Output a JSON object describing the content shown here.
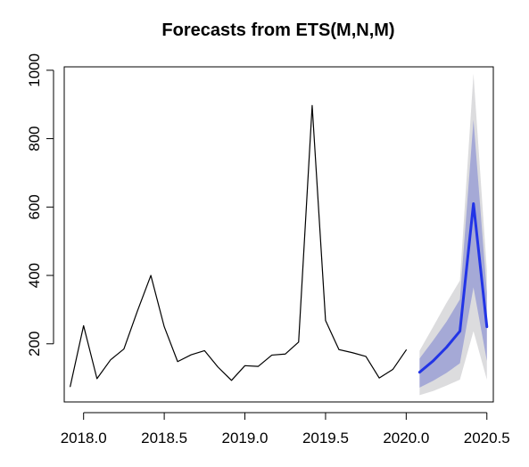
{
  "chart_data": {
    "type": "line",
    "title": "Forecasts from ETS(M,N,M)",
    "xlabel": "",
    "ylabel": "",
    "xlim": [
      2017.88,
      2020.54
    ],
    "ylim": [
      30,
      1010
    ],
    "x_ticks": [
      2018.0,
      2018.5,
      2019.0,
      2019.5,
      2020.0,
      2020.5
    ],
    "x_tick_labels": [
      "2018.0",
      "2018.5",
      "2019.0",
      "2019.5",
      "2020.0",
      "2020.5"
    ],
    "y_ticks": [
      200,
      400,
      600,
      800,
      1000
    ],
    "y_tick_labels": [
      "200",
      "400",
      "600",
      "800",
      "1000"
    ],
    "grid": false,
    "legend": "none",
    "series": [
      {
        "role": "observed",
        "color": "#000000",
        "x": [
          2017.917,
          2018.0,
          2018.083,
          2018.167,
          2018.25,
          2018.333,
          2018.417,
          2018.5,
          2018.583,
          2018.667,
          2018.75,
          2018.833,
          2018.917,
          2019.0,
          2019.083,
          2019.167,
          2019.25,
          2019.333,
          2019.417,
          2019.5,
          2019.583,
          2019.667,
          2019.75,
          2019.833,
          2019.917,
          2020.0
        ],
        "values": [
          75,
          253,
          98,
          153,
          185,
          295,
          400,
          250,
          148,
          168,
          180,
          132,
          93,
          136,
          134,
          167,
          170,
          205,
          897,
          268,
          183,
          174,
          163,
          100,
          125,
          182
        ]
      },
      {
        "role": "forecast",
        "color": "#2234e6",
        "x": [
          2020.083,
          2020.167,
          2020.25,
          2020.333,
          2020.417,
          2020.5
        ],
        "values": [
          117,
          150,
          190,
          237,
          610,
          250
        ]
      }
    ],
    "intervals": [
      {
        "level": "95%",
        "color": "#dcdcde",
        "x": [
          2020.083,
          2020.167,
          2020.25,
          2020.333,
          2020.417,
          2020.5
        ],
        "lower": [
          50,
          62,
          78,
          95,
          237,
          95
        ],
        "upper": [
          180,
          250,
          320,
          385,
          990,
          415
        ]
      },
      {
        "level": "80%",
        "color": "#a5a9d6",
        "x": [
          2020.083,
          2020.167,
          2020.25,
          2020.333,
          2020.417,
          2020.5
        ],
        "lower": [
          72,
          92,
          115,
          143,
          365,
          150
        ],
        "upper": [
          157,
          210,
          265,
          330,
          855,
          350
        ]
      }
    ]
  }
}
